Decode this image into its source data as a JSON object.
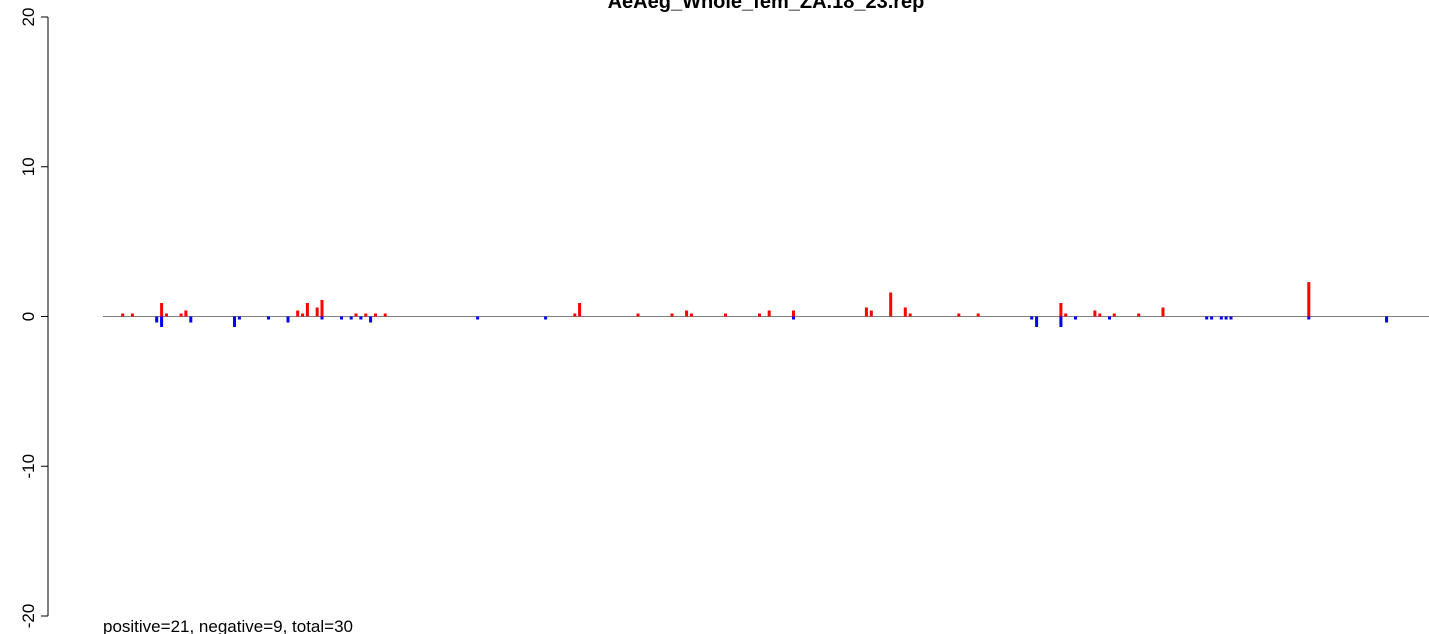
{
  "chart_data": {
    "type": "bar",
    "title": "AeAeg_Whole_fem_ZA.18_23.rep",
    "xlabel": "",
    "ylabel": "",
    "ylim": [
      -20,
      20
    ],
    "yticks": [
      "-20",
      "-10",
      "0",
      "10",
      "20"
    ],
    "x_axis_shown": false,
    "grid": false,
    "zero_line": true,
    "colors": {
      "positive": "#ff0000",
      "negative": "#0000ff",
      "baseline": "#808080"
    },
    "summary": "positive=21, negative=9, total=30",
    "x_range": [
      1,
      267
    ],
    "series": [
      {
        "sign": "positive",
        "points": [
          {
            "x": 3,
            "y": 0.2
          },
          {
            "x": 5,
            "y": 0.2
          },
          {
            "x": 11,
            "y": 0.9
          },
          {
            "x": 12,
            "y": 0.2
          },
          {
            "x": 15,
            "y": 0.2
          },
          {
            "x": 16,
            "y": 0.4
          },
          {
            "x": 39,
            "y": 0.4
          },
          {
            "x": 40,
            "y": 0.2
          },
          {
            "x": 41,
            "y": 0.9
          },
          {
            "x": 43,
            "y": 0.6
          },
          {
            "x": 44,
            "y": 1.1
          },
          {
            "x": 51,
            "y": 0.2
          },
          {
            "x": 53,
            "y": 0.2
          },
          {
            "x": 55,
            "y": 0.2
          },
          {
            "x": 57,
            "y": 0.2
          },
          {
            "x": 96,
            "y": 0.2
          },
          {
            "x": 97,
            "y": 0.9
          },
          {
            "x": 109,
            "y": 0.2
          },
          {
            "x": 116,
            "y": 0.2
          },
          {
            "x": 119,
            "y": 0.4
          },
          {
            "x": 120,
            "y": 0.2
          },
          {
            "x": 127,
            "y": 0.2
          },
          {
            "x": 134,
            "y": 0.2
          },
          {
            "x": 136,
            "y": 0.4
          },
          {
            "x": 141,
            "y": 0.4
          },
          {
            "x": 156,
            "y": 0.6
          },
          {
            "x": 157,
            "y": 0.4
          },
          {
            "x": 161,
            "y": 1.6
          },
          {
            "x": 164,
            "y": 0.6
          },
          {
            "x": 165,
            "y": 0.2
          },
          {
            "x": 175,
            "y": 0.2
          },
          {
            "x": 179,
            "y": 0.2
          },
          {
            "x": 196,
            "y": 0.9
          },
          {
            "x": 197,
            "y": 0.2
          },
          {
            "x": 203,
            "y": 0.4
          },
          {
            "x": 204,
            "y": 0.2
          },
          {
            "x": 207,
            "y": 0.2
          },
          {
            "x": 212,
            "y": 0.2
          },
          {
            "x": 217,
            "y": 0.6
          },
          {
            "x": 247,
            "y": 2.3
          }
        ]
      },
      {
        "sign": "negative",
        "points": [
          {
            "x": 10,
            "y": -0.4
          },
          {
            "x": 11,
            "y": -0.7
          },
          {
            "x": 17,
            "y": -0.4
          },
          {
            "x": 26,
            "y": -0.7
          },
          {
            "x": 27,
            "y": -0.2
          },
          {
            "x": 33,
            "y": -0.2
          },
          {
            "x": 37,
            "y": -0.4
          },
          {
            "x": 44,
            "y": -0.2
          },
          {
            "x": 48,
            "y": -0.2
          },
          {
            "x": 50,
            "y": -0.2
          },
          {
            "x": 52,
            "y": -0.2
          },
          {
            "x": 54,
            "y": -0.4
          },
          {
            "x": 76,
            "y": -0.2
          },
          {
            "x": 90,
            "y": -0.2
          },
          {
            "x": 141,
            "y": -0.2
          },
          {
            "x": 190,
            "y": -0.2
          },
          {
            "x": 191,
            "y": -0.7
          },
          {
            "x": 196,
            "y": -0.7
          },
          {
            "x": 199,
            "y": -0.2
          },
          {
            "x": 206,
            "y": -0.2
          },
          {
            "x": 226,
            "y": -0.2
          },
          {
            "x": 227,
            "y": -0.2
          },
          {
            "x": 229,
            "y": -0.2
          },
          {
            "x": 230,
            "y": -0.2
          },
          {
            "x": 231,
            "y": -0.2
          },
          {
            "x": 247,
            "y": -0.2
          },
          {
            "x": 263,
            "y": -0.4
          }
        ]
      }
    ]
  }
}
